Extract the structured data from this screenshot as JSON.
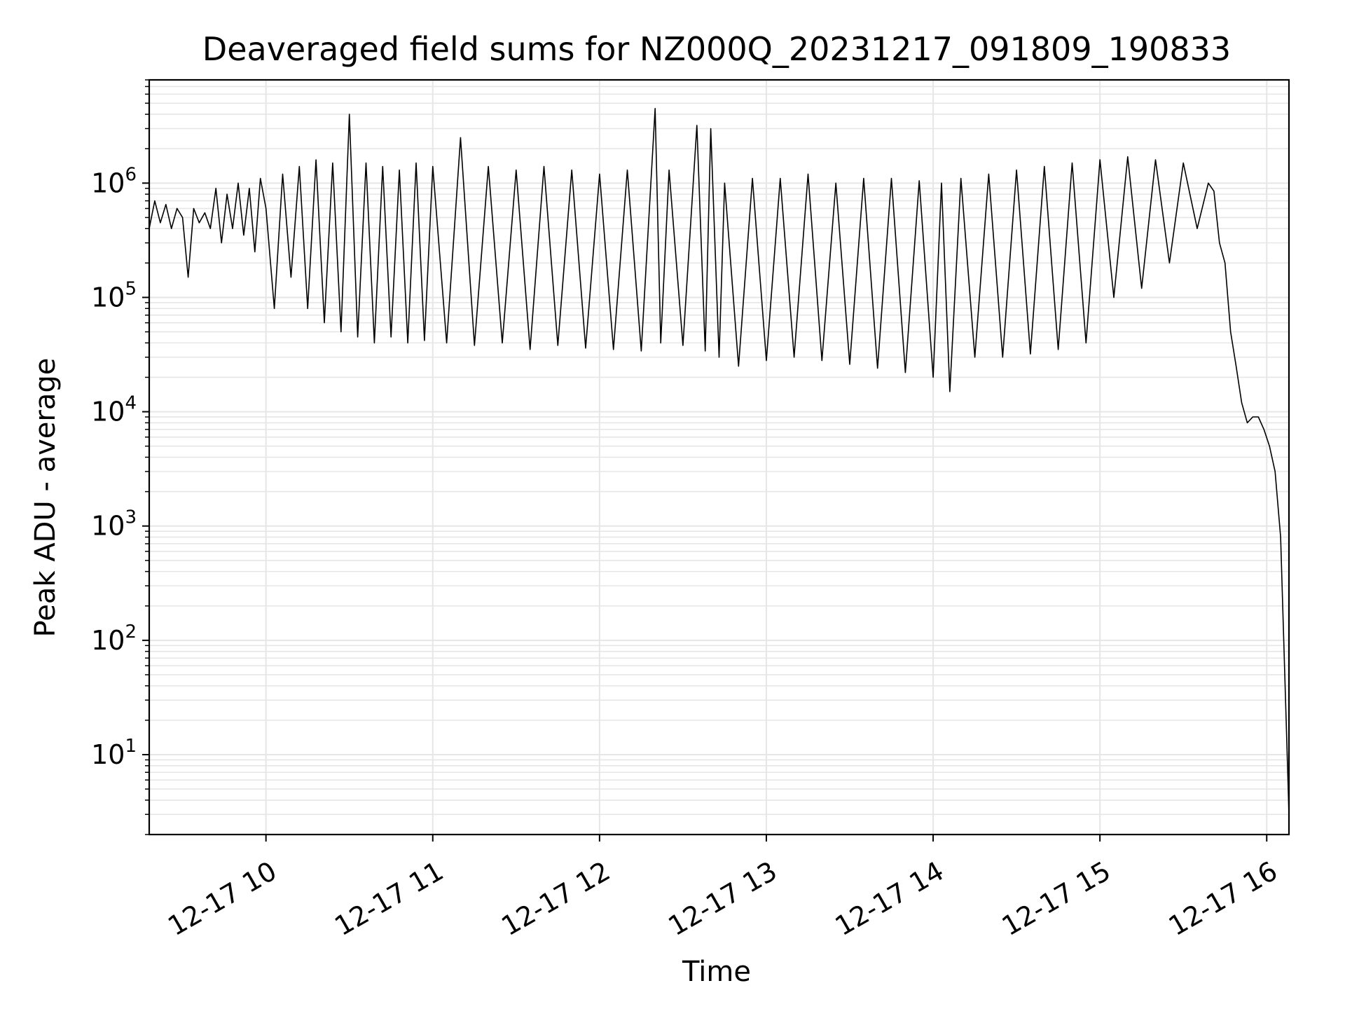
{
  "chart_data": {
    "type": "line",
    "title": "Deaveraged field sums for NZ000Q_20231217_091809_190833",
    "xlabel": "Time",
    "ylabel": "Peak ADU - average",
    "yscale": "log",
    "xlim": [
      "2023-12-17 09:18",
      "2023-12-17 16:08"
    ],
    "ylim": [
      2,
      8000000
    ],
    "x_ticks": [
      {
        "value": "2023-12-17 10:00",
        "label": "12-17 10"
      },
      {
        "value": "2023-12-17 11:00",
        "label": "12-17 11"
      },
      {
        "value": "2023-12-17 12:00",
        "label": "12-17 12"
      },
      {
        "value": "2023-12-17 13:00",
        "label": "12-17 13"
      },
      {
        "value": "2023-12-17 14:00",
        "label": "12-17 14"
      },
      {
        "value": "2023-12-17 15:00",
        "label": "12-17 15"
      },
      {
        "value": "2023-12-17 16:00",
        "label": "12-17 16"
      }
    ],
    "y_ticks": [
      {
        "value": 10,
        "base": "10",
        "exp": "1"
      },
      {
        "value": 100,
        "base": "10",
        "exp": "2"
      },
      {
        "value": 1000,
        "base": "10",
        "exp": "3"
      },
      {
        "value": 10000,
        "base": "10",
        "exp": "4"
      },
      {
        "value": 100000,
        "base": "10",
        "exp": "5"
      },
      {
        "value": 1000000,
        "base": "10",
        "exp": "6"
      }
    ],
    "grid": true,
    "line_color": "#000000",
    "grid_color": "#e6e6e6",
    "series": [
      {
        "x": [
          "2023-12-17 09:18",
          "2023-12-17 09:20",
          "2023-12-17 09:22",
          "2023-12-17 09:24",
          "2023-12-17 09:26",
          "2023-12-17 09:28",
          "2023-12-17 09:30",
          "2023-12-17 09:32",
          "2023-12-17 09:34",
          "2023-12-17 09:36",
          "2023-12-17 09:38",
          "2023-12-17 09:40",
          "2023-12-17 09:42",
          "2023-12-17 09:44",
          "2023-12-17 09:46",
          "2023-12-17 09:48",
          "2023-12-17 09:50",
          "2023-12-17 09:52",
          "2023-12-17 09:54",
          "2023-12-17 09:56",
          "2023-12-17 09:58",
          "2023-12-17 10:00",
          "2023-12-17 10:03",
          "2023-12-17 10:06",
          "2023-12-17 10:09",
          "2023-12-17 10:12",
          "2023-12-17 10:15",
          "2023-12-17 10:18",
          "2023-12-17 10:21",
          "2023-12-17 10:24",
          "2023-12-17 10:27",
          "2023-12-17 10:30",
          "2023-12-17 10:33",
          "2023-12-17 10:36",
          "2023-12-17 10:39",
          "2023-12-17 10:42",
          "2023-12-17 10:45",
          "2023-12-17 10:48",
          "2023-12-17 10:51",
          "2023-12-17 10:54",
          "2023-12-17 10:57",
          "2023-12-17 11:00",
          "2023-12-17 11:05",
          "2023-12-17 11:10",
          "2023-12-17 11:15",
          "2023-12-17 11:20",
          "2023-12-17 11:25",
          "2023-12-17 11:30",
          "2023-12-17 11:35",
          "2023-12-17 11:40",
          "2023-12-17 11:45",
          "2023-12-17 11:50",
          "2023-12-17 11:55",
          "2023-12-17 12:00",
          "2023-12-17 12:05",
          "2023-12-17 12:10",
          "2023-12-17 12:15",
          "2023-12-17 12:20",
          "2023-12-17 12:22",
          "2023-12-17 12:25",
          "2023-12-17 12:30",
          "2023-12-17 12:35",
          "2023-12-17 12:38",
          "2023-12-17 12:40",
          "2023-12-17 12:43",
          "2023-12-17 12:45",
          "2023-12-17 12:50",
          "2023-12-17 12:55",
          "2023-12-17 13:00",
          "2023-12-17 13:05",
          "2023-12-17 13:10",
          "2023-12-17 13:15",
          "2023-12-17 13:20",
          "2023-12-17 13:25",
          "2023-12-17 13:30",
          "2023-12-17 13:35",
          "2023-12-17 13:40",
          "2023-12-17 13:45",
          "2023-12-17 13:50",
          "2023-12-17 13:55",
          "2023-12-17 14:00",
          "2023-12-17 14:03",
          "2023-12-17 14:06",
          "2023-12-17 14:10",
          "2023-12-17 14:15",
          "2023-12-17 14:20",
          "2023-12-17 14:25",
          "2023-12-17 14:30",
          "2023-12-17 14:35",
          "2023-12-17 14:40",
          "2023-12-17 14:45",
          "2023-12-17 14:50",
          "2023-12-17 14:55",
          "2023-12-17 15:00",
          "2023-12-17 15:05",
          "2023-12-17 15:10",
          "2023-12-17 15:15",
          "2023-12-17 15:20",
          "2023-12-17 15:25",
          "2023-12-17 15:30",
          "2023-12-17 15:35",
          "2023-12-17 15:39",
          "2023-12-17 15:41",
          "2023-12-17 15:43",
          "2023-12-17 15:45",
          "2023-12-17 15:47",
          "2023-12-17 15:49",
          "2023-12-17 15:51",
          "2023-12-17 15:53",
          "2023-12-17 15:55",
          "2023-12-17 15:57",
          "2023-12-17 15:59",
          "2023-12-17 16:01",
          "2023-12-17 16:03",
          "2023-12-17 16:05",
          "2023-12-17 16:07",
          "2023-12-17 16:08"
        ],
        "y": [
          400000,
          700000,
          450000,
          650000,
          400000,
          600000,
          500000,
          150000,
          600000,
          450000,
          550000,
          400000,
          900000,
          300000,
          800000,
          400000,
          1000000,
          350000,
          900000,
          250000,
          1100000,
          600000,
          80000,
          1200000,
          150000,
          1400000,
          80000,
          1600000,
          60000,
          1500000,
          50000,
          4000000,
          45000,
          1500000,
          40000,
          1400000,
          45000,
          1300000,
          40000,
          1500000,
          42000,
          1400000,
          40000,
          2500000,
          38000,
          1400000,
          40000,
          1300000,
          35000,
          1400000,
          38000,
          1300000,
          36000,
          1200000,
          35000,
          1300000,
          34000,
          4500000,
          40000,
          1300000,
          38000,
          3200000,
          34000,
          3000000,
          30000,
          1000000,
          25000,
          1100000,
          28000,
          1100000,
          30000,
          1200000,
          28000,
          1000000,
          26000,
          1100000,
          24000,
          1100000,
          22000,
          1050000,
          20000,
          1000000,
          15000,
          1100000,
          30000,
          1200000,
          30000,
          1300000,
          32000,
          1400000,
          35000,
          1500000,
          40000,
          1600000,
          100000,
          1700000,
          120000,
          1600000,
          200000,
          1500000,
          400000,
          1000000,
          850000,
          300000,
          200000,
          50000,
          25000,
          12000,
          8000,
          9000,
          9000,
          7000,
          5000,
          3000,
          800,
          20,
          3
        ]
      }
    ]
  }
}
